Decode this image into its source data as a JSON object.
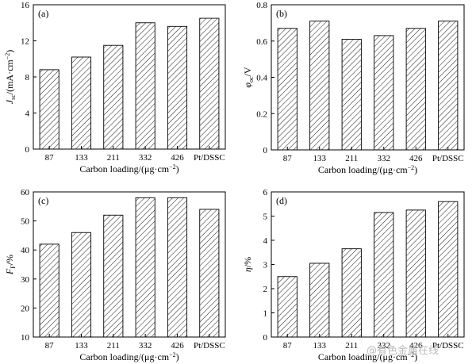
{
  "categories": [
    "87",
    "133",
    "211",
    "332",
    "426",
    "Pt/DSSC"
  ],
  "chart_data": [
    {
      "type": "bar",
      "panel": "(a)",
      "categories": [
        "87",
        "133",
        "211",
        "332",
        "426",
        "Pt/DSSC"
      ],
      "values": [
        8.8,
        10.2,
        11.5,
        14.0,
        13.6,
        14.5
      ],
      "ylim": [
        0,
        16
      ],
      "yticks": [
        0,
        4,
        8,
        12,
        16
      ],
      "ylabel": "J",
      "ylabel_sub": "sc",
      "ylabel_unit": "/(mA·cm",
      "ylabel_sup": "−2",
      "ylabel_end": ")",
      "xlabel": "Carbon loading/(μg·cm",
      "xlabel_sup": "−2",
      "xlabel_end": ")"
    },
    {
      "type": "bar",
      "panel": "(b)",
      "categories": [
        "87",
        "133",
        "211",
        "332",
        "426",
        "Pt/DSSC"
      ],
      "values": [
        0.67,
        0.71,
        0.61,
        0.63,
        0.67,
        0.71
      ],
      "ylim": [
        0,
        0.8
      ],
      "yticks": [
        0,
        0.2,
        0.4,
        0.6,
        0.8
      ],
      "ytick_labels": [
        "0",
        "0.2",
        "0.4",
        "0.6",
        "0.8"
      ],
      "ylabel": "φ",
      "ylabel_sub": "oc",
      "ylabel_unit": "/V",
      "ylabel_sup": "",
      "ylabel_end": "",
      "xlabel": "Carbon loading/(μg·cm",
      "xlabel_sup": "−2",
      "xlabel_end": ")"
    },
    {
      "type": "bar",
      "panel": "(c)",
      "categories": [
        "87",
        "133",
        "211",
        "332",
        "426",
        "Pt/DSSC"
      ],
      "values": [
        42,
        46,
        52,
        58,
        58,
        54
      ],
      "ylim": [
        10,
        60
      ],
      "yticks": [
        10,
        20,
        30,
        40,
        50,
        60
      ],
      "ylabel": "F",
      "ylabel_sub": "F",
      "ylabel_unit": "/%",
      "ylabel_sup": "",
      "ylabel_end": "",
      "xlabel": "Carbon loading/(μg·cm",
      "xlabel_sup": "−2",
      "xlabel_end": ")"
    },
    {
      "type": "bar",
      "panel": "(d)",
      "categories": [
        "87",
        "133",
        "211",
        "332",
        "426",
        "Pt/DSSC"
      ],
      "values": [
        2.5,
        3.05,
        3.65,
        5.15,
        5.25,
        5.6
      ],
      "ylim": [
        0,
        6
      ],
      "yticks": [
        0,
        1,
        2,
        3,
        4,
        5,
        6
      ],
      "ylabel": "η",
      "ylabel_sub": "",
      "ylabel_unit": "/%",
      "ylabel_sup": "",
      "ylabel_end": "",
      "xlabel": "Carbon loading/(μg·cm",
      "xlabel_sup": "−2",
      "xlabel_end": ")"
    }
  ],
  "watermark": "@有色金属在线"
}
